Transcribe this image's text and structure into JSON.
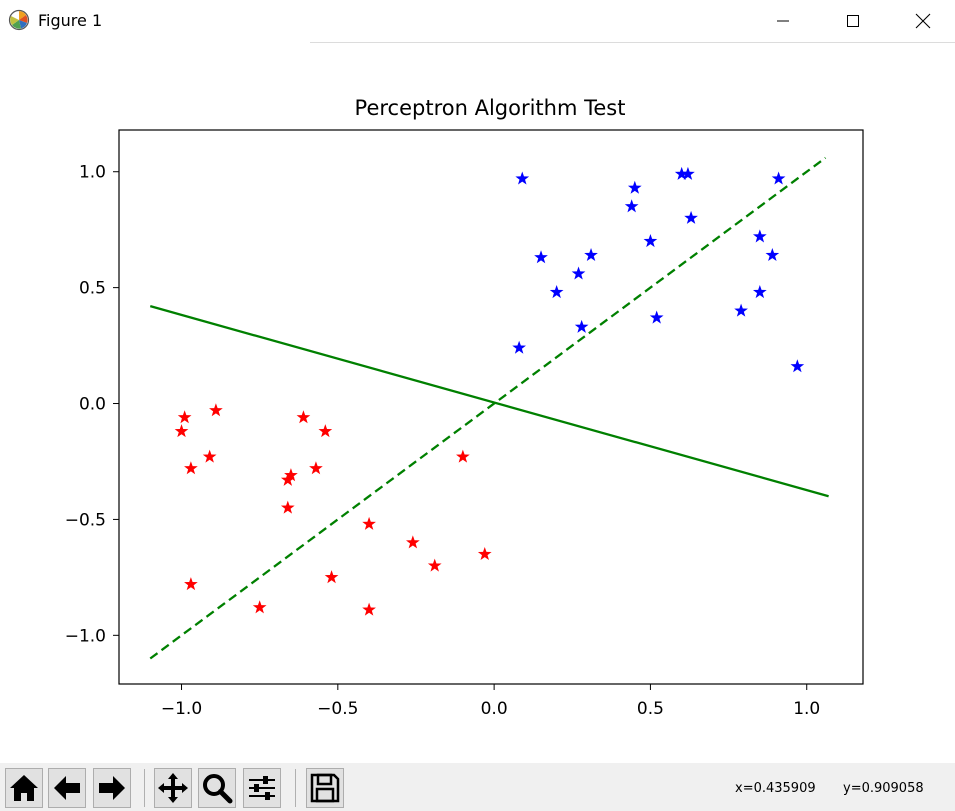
{
  "window": {
    "title": "Figure 1",
    "icons": [
      "matplotlib-logo-icon",
      "minimize-icon",
      "maximize-icon",
      "close-icon"
    ]
  },
  "toolbar": {
    "buttons": [
      "home-icon",
      "back-arrow-icon",
      "forward-arrow-icon",
      "pan-icon",
      "zoom-icon",
      "configure-subplots-icon",
      "save-icon"
    ],
    "coords_x": "x=0.435909",
    "coords_y": "y=0.909058"
  },
  "chart_data": {
    "type": "scatter",
    "title": "Perceptron Algorithm Test",
    "xlabel": "",
    "ylabel": "",
    "xlim": [
      -1.2,
      1.18
    ],
    "ylim": [
      -1.21,
      1.18
    ],
    "xticks": [
      -1.0,
      -0.5,
      0.0,
      0.5,
      1.0
    ],
    "yticks": [
      -1.0,
      -0.5,
      0.0,
      0.5,
      1.0
    ],
    "xtick_labels": [
      "−1.0",
      "−0.5",
      "0.0",
      "0.5",
      "1.0"
    ],
    "ytick_labels": [
      "−1.0",
      "−0.5",
      "0.0",
      "0.5",
      "1.0"
    ],
    "grid": false,
    "series": [
      {
        "color": "#0000ff",
        "marker": "star",
        "points": [
          [
            0.09,
            0.97
          ],
          [
            0.15,
            0.63
          ],
          [
            0.2,
            0.48
          ],
          [
            0.27,
            0.56
          ],
          [
            0.28,
            0.33
          ],
          [
            0.31,
            0.64
          ],
          [
            0.08,
            0.24
          ],
          [
            0.44,
            0.85
          ],
          [
            0.45,
            0.93
          ],
          [
            0.5,
            0.7
          ],
          [
            0.52,
            0.37
          ],
          [
            0.6,
            0.99
          ],
          [
            0.62,
            0.99
          ],
          [
            0.63,
            0.8
          ],
          [
            0.79,
            0.4
          ],
          [
            0.85,
            0.72
          ],
          [
            0.85,
            0.48
          ],
          [
            0.89,
            0.64
          ],
          [
            0.91,
            0.97
          ],
          [
            0.97,
            0.16
          ]
        ]
      },
      {
        "color": "#ff0000",
        "marker": "star",
        "points": [
          [
            -0.99,
            -0.06
          ],
          [
            -1.0,
            -0.12
          ],
          [
            -0.97,
            -0.28
          ],
          [
            -0.89,
            -0.03
          ],
          [
            -0.91,
            -0.23
          ],
          [
            -0.97,
            -0.78
          ],
          [
            -0.65,
            -0.31
          ],
          [
            -0.66,
            -0.33
          ],
          [
            -0.66,
            -0.45
          ],
          [
            -0.61,
            -0.06
          ],
          [
            -0.57,
            -0.28
          ],
          [
            -0.54,
            -0.12
          ],
          [
            -0.52,
            -0.75
          ],
          [
            -0.4,
            -0.52
          ],
          [
            -0.4,
            -0.89
          ],
          [
            -0.75,
            -0.88
          ],
          [
            -0.26,
            -0.6
          ],
          [
            -0.19,
            -0.7
          ],
          [
            -0.1,
            -0.23
          ],
          [
            -0.03,
            -0.65
          ]
        ]
      }
    ],
    "lines": [
      {
        "color": "#008000",
        "style": "solid",
        "x": [
          -1.1,
          1.07
        ],
        "y": [
          0.42,
          -0.4
        ]
      },
      {
        "color": "#008000",
        "style": "dashed",
        "x": [
          -1.1,
          1.06
        ],
        "y": [
          -1.1,
          1.06
        ]
      }
    ]
  }
}
